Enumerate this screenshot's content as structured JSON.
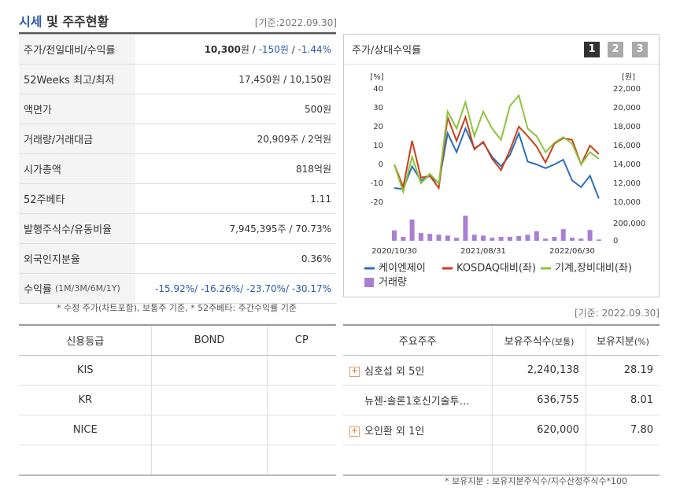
{
  "header": {
    "title_accent": "시세",
    "title_rest": "및 주주현황",
    "date": "[기준:2022.09.30]"
  },
  "stock_table": {
    "rows": [
      {
        "label": "주가/전일대비/수익률",
        "value": [
          "10,300",
          "원 / ",
          "-150원",
          " / ",
          "-1.44%"
        ]
      },
      {
        "label": "52Weeks 최고/최저",
        "value": "17,450원 / 10,150원"
      },
      {
        "label": "액면가",
        "value": "500원"
      },
      {
        "label": "거래량/거래대금",
        "value": "20,909주 / 2억원"
      },
      {
        "label": "시가총액",
        "value": "818억원"
      },
      {
        "label": "52주베타",
        "value": "1.11"
      },
      {
        "label": "발행주식수/유동비율",
        "value": "7,945,395주 / 70.73%"
      },
      {
        "label": "외국인지분율",
        "value": "0.36%"
      },
      {
        "label": "수익률",
        "label_note": "(1M/3M/6M/1Y)",
        "value": "-15.92%/ -16.26%/ -23.70%/ -30.17%"
      }
    ],
    "note": "* 수정 주가(차트포함), 보통주 기준, * 52주베타: 주간수익률 기준"
  },
  "chart_panel": {
    "title": "주가/상대수익률",
    "buttons": [
      "1",
      "2",
      "3"
    ]
  },
  "chart_data": {
    "type": "line",
    "ylabel": "[%]",
    "y2label": "[원]",
    "categories": [
      "2020/10/30",
      null,
      null,
      null,
      null,
      null,
      null,
      null,
      null,
      null,
      "2021/08/31",
      null,
      null,
      null,
      null,
      null,
      null,
      null,
      null,
      null,
      "2022/06/30",
      null,
      null,
      null
    ],
    "ylim": [
      -20,
      40
    ],
    "yticks": [
      -20,
      -10,
      0,
      10,
      20,
      30,
      40
    ],
    "y2lim": [
      10000,
      22000
    ],
    "y2ticks": [
      {
        "value": 10000,
        "label": "10,000"
      },
      {
        "value": 12000,
        "label": "12,000"
      },
      {
        "value": 14000,
        "label": "14,000"
      },
      {
        "value": 16000,
        "label": "16,000"
      },
      {
        "value": 18000,
        "label": "18,000"
      },
      {
        "value": 20000,
        "label": "20,000"
      },
      {
        "value": 22000,
        "label": "22,000"
      }
    ],
    "y3lim": [
      0,
      300000
    ],
    "y3ticks": [
      0,
      {
        "value": 200000,
        "label": "200,000"
      }
    ],
    "series": [
      {
        "name": "케이엔제이",
        "color": "#2a6ebd",
        "axis": "y2",
        "values": [
          11500,
          11400,
          13800,
          12300,
          12800,
          12000,
          17300,
          15300,
          17800,
          15700,
          16300,
          14800,
          13800,
          15000,
          17300,
          14300,
          14000,
          13600,
          14000,
          14500,
          12300,
          11600,
          12800,
          10400
        ]
      },
      {
        "name": "KOSDAQ대비(좌)",
        "color": "#c8401a",
        "values": [
          0,
          -12,
          12.5,
          -7,
          -6,
          -12.5,
          25,
          12.5,
          25,
          8,
          12,
          3,
          -3,
          7.5,
          20,
          15,
          9.5,
          1,
          11,
          14,
          13,
          0,
          10,
          5.5
        ]
      },
      {
        "name": "기계,장비대비(좌)",
        "color": "#8cc43c",
        "values": [
          0,
          -14.5,
          4,
          -10,
          -5,
          -10,
          28,
          19,
          33,
          15,
          28,
          19,
          13,
          31,
          36.5,
          19,
          15,
          6.5,
          11.5,
          14.5,
          11,
          0,
          6.5,
          3
        ]
      },
      {
        "name": "거래량",
        "color": "#a97fd4",
        "type": "bar",
        "axis": "y3",
        "values": [
          120000,
          45000,
          245000,
          90000,
          80000,
          70000,
          60000,
          35000,
          290000,
          70000,
          60000,
          35000,
          45000,
          45000,
          55000,
          70000,
          110000,
          25000,
          45000,
          135000,
          35000,
          25000,
          125000,
          15000
        ]
      }
    ]
  },
  "right_date": "[기준: 2022.09.30]",
  "credit_table": {
    "headers": [
      "신용등급",
      "BOND",
      "CP"
    ],
    "rows": [
      [
        "KIS",
        "",
        ""
      ],
      [
        "KR",
        "",
        ""
      ],
      [
        "NICE",
        "",
        ""
      ]
    ]
  },
  "holders_table": {
    "headers": [
      {
        "main": "주요주주"
      },
      {
        "main": "보유주식수",
        "sub": "(보통)"
      },
      {
        "main": "보유지분",
        "sub": "(%)"
      }
    ],
    "rows": [
      [
        "심호섭 외 5인",
        "2,240,138",
        "28.19"
      ],
      [
        "뉴젠-솔론1호신기술투…",
        "636,755",
        "8.01"
      ],
      [
        "오인환 외 1인",
        "620,000",
        "7.80"
      ]
    ],
    "note": "* 보유지분 : 보유지분주식수/지수산정주식수*100"
  }
}
